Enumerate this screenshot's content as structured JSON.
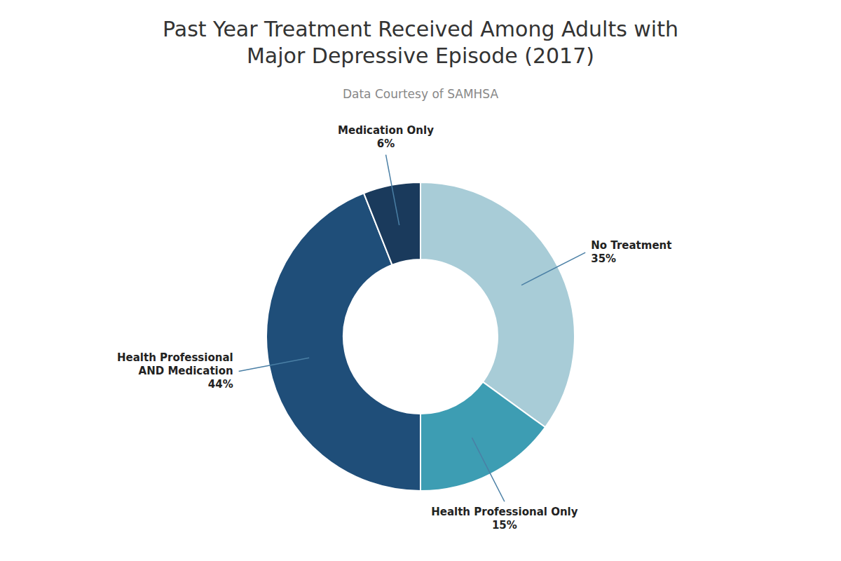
{
  "chart_data": {
    "type": "donut",
    "title": "Past Year Treatment Received Among Adults with\nMajor Depressive Episode (2017)",
    "subtitle": "Data Courtesy of SAMHSA",
    "categories": [
      "No Treatment",
      "Health Professional Only",
      "Health Professional\nAND Medication",
      "Medication Only"
    ],
    "values": [
      35,
      15,
      44,
      6
    ],
    "value_labels": [
      "35%",
      "15%",
      "44%",
      "6%"
    ],
    "colors": [
      "#a8ccd7",
      "#3d9db3",
      "#1f4e79",
      "#1a3a5c"
    ],
    "data_labels": true
  }
}
